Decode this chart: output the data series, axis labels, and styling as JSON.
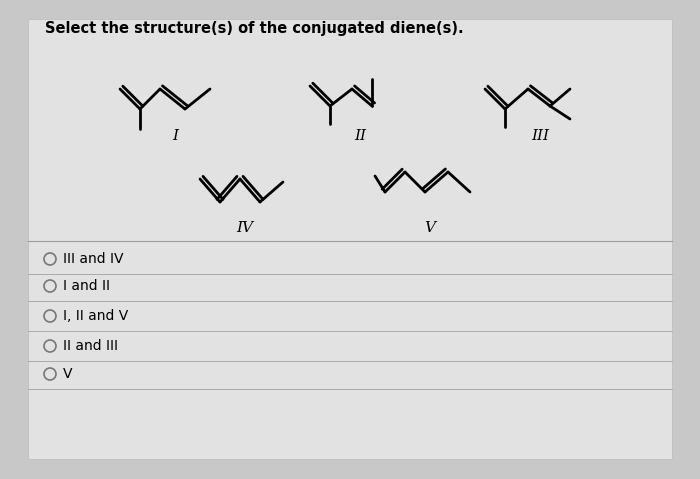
{
  "title": "Select the structure(s) of the conjugated diene(s).",
  "title_fontsize": 10.5,
  "background_color": "#c8c8c8",
  "panel_color": "#e4e4e4",
  "options": [
    "III and IV",
    "I and II",
    "I, II and V",
    "II and III",
    "V"
  ],
  "molecule_labels": [
    "I",
    "II",
    "III",
    "IV",
    "V"
  ]
}
